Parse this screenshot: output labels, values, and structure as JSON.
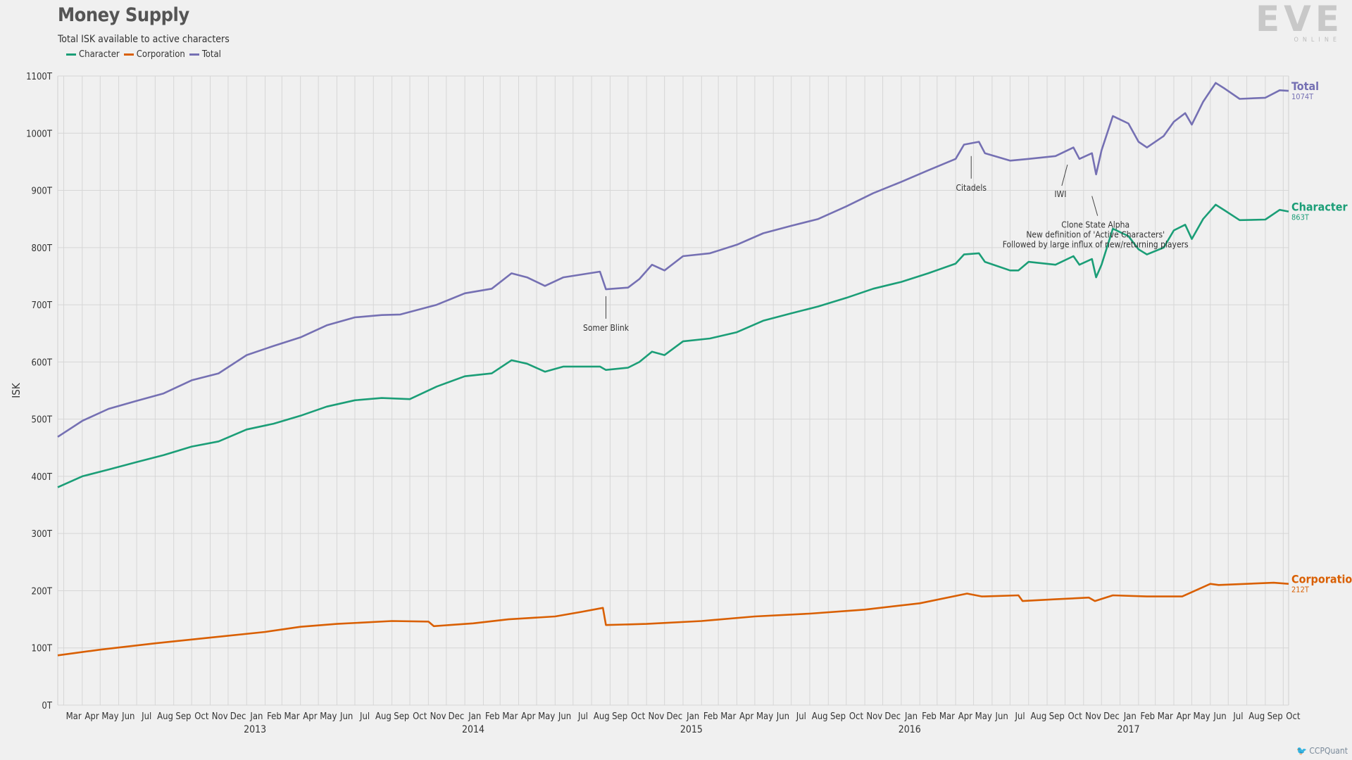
{
  "title": "Money Supply",
  "subtitle": "Total ISK available to active characters",
  "logo": {
    "main": "EVE",
    "sub": "ONLINE"
  },
  "credit": "CCPQuant",
  "chart_data": {
    "type": "line",
    "ylabel": "ISK",
    "ylim": [
      0,
      1100
    ],
    "y_ticks": [
      0,
      100,
      200,
      300,
      400,
      500,
      600,
      700,
      800,
      900,
      1000,
      1100
    ],
    "y_tick_labels": [
      "0T",
      "100T",
      "200T",
      "300T",
      "400T",
      "500T",
      "600T",
      "700T",
      "800T",
      "900T",
      "1000T",
      "1100T"
    ],
    "x_range": [
      "2012-02-20",
      "2017-10-10"
    ],
    "x_months": [
      "2012-03",
      "2012-04",
      "2012-05",
      "2012-06",
      "2012-07",
      "2012-08",
      "2012-09",
      "2012-10",
      "2012-11",
      "2012-12",
      "2013-01",
      "2013-02",
      "2013-03",
      "2013-04",
      "2013-05",
      "2013-06",
      "2013-07",
      "2013-08",
      "2013-09",
      "2013-10",
      "2013-11",
      "2013-12",
      "2014-01",
      "2014-02",
      "2014-03",
      "2014-04",
      "2014-05",
      "2014-06",
      "2014-07",
      "2014-08",
      "2014-09",
      "2014-10",
      "2014-11",
      "2014-12",
      "2015-01",
      "2015-02",
      "2015-03",
      "2015-04",
      "2015-05",
      "2015-06",
      "2015-07",
      "2015-08",
      "2015-09",
      "2015-10",
      "2015-11",
      "2015-12",
      "2016-01",
      "2016-02",
      "2016-03",
      "2016-04",
      "2016-05",
      "2016-06",
      "2016-07",
      "2016-08",
      "2016-09",
      "2016-10",
      "2016-11",
      "2016-12",
      "2017-01",
      "2017-02",
      "2017-03",
      "2017-04",
      "2017-05",
      "2017-06",
      "2017-07",
      "2017-08",
      "2017-09",
      "2017-10"
    ],
    "x_month_labels": [
      "Mar",
      "Apr",
      "May",
      "Jun",
      "Jul",
      "Aug",
      "Sep",
      "Oct",
      "Nov",
      "Dec",
      "Jan",
      "Feb",
      "Mar",
      "Apr",
      "May",
      "Jun",
      "Jul",
      "Aug",
      "Sep",
      "Oct",
      "Nov",
      "Dec",
      "Jan",
      "Feb",
      "Mar",
      "Apr",
      "May",
      "Jun",
      "Jul",
      "Aug",
      "Sep",
      "Oct",
      "Nov",
      "Dec",
      "Jan",
      "Feb",
      "Mar",
      "Apr",
      "May",
      "Jun",
      "Jul",
      "Aug",
      "Sep",
      "Oct",
      "Nov",
      "Dec",
      "Jan",
      "Feb",
      "Mar",
      "Apr",
      "May",
      "Jun",
      "Jul",
      "Aug",
      "Sep",
      "Oct",
      "Nov",
      "Dec",
      "Jan",
      "Feb",
      "Mar",
      "Apr",
      "May",
      "Jun",
      "Jul",
      "Aug",
      "Sep",
      "Oct"
    ],
    "x_year_labels": [
      {
        "label": "2013",
        "date": "2013-01-15"
      },
      {
        "label": "2014",
        "date": "2014-01-15"
      },
      {
        "label": "2015",
        "date": "2015-01-15"
      },
      {
        "label": "2016",
        "date": "2016-01-15"
      },
      {
        "label": "2017",
        "date": "2017-01-15"
      }
    ],
    "grid": true,
    "legend_position": "top-left",
    "series": [
      {
        "name": "Character",
        "color": "#1b9e77",
        "end_label": "Character",
        "end_value": "863T",
        "points": [
          [
            "2012-02-20",
            381
          ],
          [
            "2012-04-01",
            400
          ],
          [
            "2012-05-15",
            412
          ],
          [
            "2012-07-01",
            425
          ],
          [
            "2012-08-15",
            437
          ],
          [
            "2012-10-01",
            452
          ],
          [
            "2012-11-15",
            461
          ],
          [
            "2013-01-01",
            482
          ],
          [
            "2013-02-15",
            492
          ],
          [
            "2013-04-01",
            506
          ],
          [
            "2013-05-15",
            522
          ],
          [
            "2013-07-01",
            533
          ],
          [
            "2013-08-15",
            537
          ],
          [
            "2013-10-01",
            535
          ],
          [
            "2013-11-15",
            557
          ],
          [
            "2014-01-01",
            575
          ],
          [
            "2014-02-15",
            580
          ],
          [
            "2014-03-20",
            603
          ],
          [
            "2014-04-15",
            597
          ],
          [
            "2014-05-15",
            583
          ],
          [
            "2014-06-15",
            592
          ],
          [
            "2014-08-15",
            592
          ],
          [
            "2014-08-25",
            586
          ],
          [
            "2014-10-01",
            590
          ],
          [
            "2014-10-20",
            600
          ],
          [
            "2014-11-10",
            618
          ],
          [
            "2014-12-01",
            612
          ],
          [
            "2015-01-01",
            636
          ],
          [
            "2015-02-15",
            641
          ],
          [
            "2015-04-01",
            652
          ],
          [
            "2015-05-15",
            672
          ],
          [
            "2015-07-01",
            685
          ],
          [
            "2015-08-15",
            697
          ],
          [
            "2015-10-01",
            712
          ],
          [
            "2015-11-15",
            728
          ],
          [
            "2016-01-01",
            740
          ],
          [
            "2016-02-15",
            755
          ],
          [
            "2016-04-01",
            772
          ],
          [
            "2016-04-15",
            788
          ],
          [
            "2016-05-10",
            790
          ],
          [
            "2016-05-20",
            775
          ],
          [
            "2016-07-01",
            760
          ],
          [
            "2016-07-15",
            760
          ],
          [
            "2016-08-01",
            775
          ],
          [
            "2016-09-15",
            770
          ],
          [
            "2016-10-15",
            785
          ],
          [
            "2016-10-25",
            770
          ],
          [
            "2016-11-15",
            780
          ],
          [
            "2016-11-22",
            748
          ],
          [
            "2016-12-01",
            770
          ],
          [
            "2016-12-20",
            833
          ],
          [
            "2017-01-15",
            820
          ],
          [
            "2017-02-01",
            797
          ],
          [
            "2017-02-15",
            788
          ],
          [
            "2017-03-15",
            800
          ],
          [
            "2017-04-01",
            830
          ],
          [
            "2017-04-20",
            840
          ],
          [
            "2017-05-01",
            815
          ],
          [
            "2017-05-20",
            850
          ],
          [
            "2017-06-10",
            875
          ],
          [
            "2017-06-25",
            865
          ],
          [
            "2017-07-20",
            848
          ],
          [
            "2017-09-01",
            849
          ],
          [
            "2017-09-25",
            866
          ],
          [
            "2017-10-10",
            863
          ]
        ]
      },
      {
        "name": "Corporation",
        "color": "#d95f02",
        "end_label": "Corporation",
        "end_value": "212T",
        "points": [
          [
            "2012-02-20",
            87
          ],
          [
            "2012-05-01",
            97
          ],
          [
            "2012-08-01",
            108
          ],
          [
            "2012-11-01",
            118
          ],
          [
            "2013-02-01",
            128
          ],
          [
            "2013-04-01",
            137
          ],
          [
            "2013-06-01",
            142
          ],
          [
            "2013-09-01",
            147
          ],
          [
            "2013-11-01",
            146
          ],
          [
            "2013-11-10",
            138
          ],
          [
            "2014-01-15",
            143
          ],
          [
            "2014-03-15",
            150
          ],
          [
            "2014-06-01",
            155
          ],
          [
            "2014-07-15",
            163
          ],
          [
            "2014-08-20",
            170
          ],
          [
            "2014-08-25",
            140
          ],
          [
            "2014-11-01",
            142
          ],
          [
            "2015-02-01",
            147
          ],
          [
            "2015-05-01",
            155
          ],
          [
            "2015-08-01",
            160
          ],
          [
            "2015-11-01",
            167
          ],
          [
            "2016-02-01",
            178
          ],
          [
            "2016-04-20",
            195
          ],
          [
            "2016-05-15",
            190
          ],
          [
            "2016-07-15",
            192
          ],
          [
            "2016-07-22",
            182
          ],
          [
            "2016-09-15",
            185
          ],
          [
            "2016-11-10",
            188
          ],
          [
            "2016-11-20",
            182
          ],
          [
            "2016-12-20",
            192
          ],
          [
            "2017-02-15",
            190
          ],
          [
            "2017-04-15",
            190
          ],
          [
            "2017-06-01",
            212
          ],
          [
            "2017-06-15",
            210
          ],
          [
            "2017-09-15",
            214
          ],
          [
            "2017-10-10",
            212
          ]
        ]
      },
      {
        "name": "Total",
        "color": "#7570b3",
        "end_label": "Total",
        "end_value": "1074T",
        "points": [
          [
            "2012-02-20",
            469
          ],
          [
            "2012-04-01",
            497
          ],
          [
            "2012-05-15",
            518
          ],
          [
            "2012-07-01",
            532
          ],
          [
            "2012-08-15",
            545
          ],
          [
            "2012-10-01",
            568
          ],
          [
            "2012-11-15",
            580
          ],
          [
            "2013-01-01",
            612
          ],
          [
            "2013-02-15",
            628
          ],
          [
            "2013-04-01",
            643
          ],
          [
            "2013-05-15",
            664
          ],
          [
            "2013-07-01",
            678
          ],
          [
            "2013-08-15",
            682
          ],
          [
            "2013-09-15",
            683
          ],
          [
            "2013-11-15",
            700
          ],
          [
            "2014-01-01",
            720
          ],
          [
            "2014-02-15",
            728
          ],
          [
            "2014-03-20",
            755
          ],
          [
            "2014-04-15",
            748
          ],
          [
            "2014-05-15",
            733
          ],
          [
            "2014-06-15",
            748
          ],
          [
            "2014-08-15",
            758
          ],
          [
            "2014-08-25",
            727
          ],
          [
            "2014-10-01",
            730
          ],
          [
            "2014-10-20",
            745
          ],
          [
            "2014-11-10",
            770
          ],
          [
            "2014-12-01",
            760
          ],
          [
            "2015-01-01",
            785
          ],
          [
            "2015-02-15",
            790
          ],
          [
            "2015-04-01",
            805
          ],
          [
            "2015-05-15",
            825
          ],
          [
            "2015-07-01",
            838
          ],
          [
            "2015-08-15",
            850
          ],
          [
            "2015-10-01",
            872
          ],
          [
            "2015-11-15",
            895
          ],
          [
            "2016-01-01",
            915
          ],
          [
            "2016-02-15",
            935
          ],
          [
            "2016-04-01",
            955
          ],
          [
            "2016-04-15",
            980
          ],
          [
            "2016-05-10",
            985
          ],
          [
            "2016-05-20",
            965
          ],
          [
            "2016-07-01",
            952
          ],
          [
            "2016-08-01",
            955
          ],
          [
            "2016-09-15",
            960
          ],
          [
            "2016-10-15",
            975
          ],
          [
            "2016-10-25",
            955
          ],
          [
            "2016-11-15",
            965
          ],
          [
            "2016-11-22",
            928
          ],
          [
            "2016-12-01",
            970
          ],
          [
            "2016-12-20",
            1030
          ],
          [
            "2017-01-15",
            1017
          ],
          [
            "2017-02-01",
            985
          ],
          [
            "2017-02-15",
            975
          ],
          [
            "2017-03-15",
            995
          ],
          [
            "2017-04-01",
            1020
          ],
          [
            "2017-04-20",
            1035
          ],
          [
            "2017-05-01",
            1015
          ],
          [
            "2017-05-20",
            1055
          ],
          [
            "2017-06-10",
            1088
          ],
          [
            "2017-06-25",
            1078
          ],
          [
            "2017-07-20",
            1060
          ],
          [
            "2017-09-01",
            1062
          ],
          [
            "2017-09-25",
            1075
          ],
          [
            "2017-10-10",
            1074
          ]
        ]
      }
    ],
    "annotations": [
      {
        "text": "Somer Blink",
        "date": "2014-08-25",
        "value": 715
      },
      {
        "text": "Citadels",
        "date": "2016-04-27",
        "value": 960
      },
      {
        "text": "IWI",
        "date": "2016-10-05",
        "value": 945
      },
      {
        "text": "Clone State Alpha",
        "date": "2016-11-15",
        "value": 890
      },
      {
        "text": "New definition of 'Active Characters'",
        "date": "2016-11-15",
        "value": 890
      },
      {
        "text": "Followed by large influx of new/returning players",
        "date": "2016-11-15",
        "value": 890
      }
    ]
  }
}
